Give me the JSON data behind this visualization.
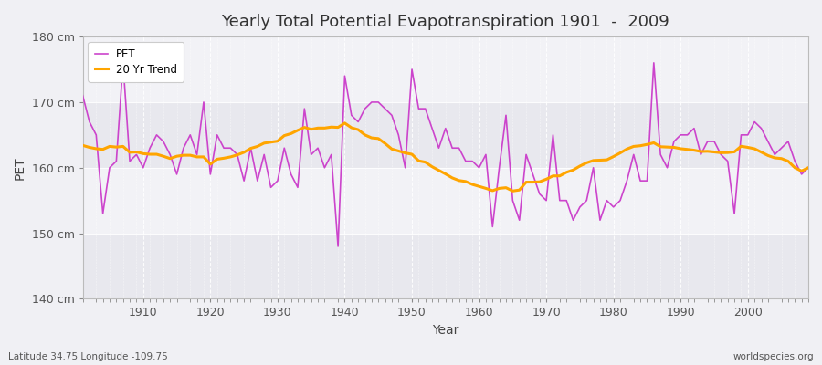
{
  "title": "Yearly Total Potential Evapotranspiration 1901  -  2009",
  "xlabel": "Year",
  "ylabel": "PET",
  "subtitle_left": "Latitude 34.75 Longitude -109.75",
  "subtitle_right": "worldspecies.org",
  "pet_color": "#cc44cc",
  "trend_color": "#ffa500",
  "bg_color": "#f0f0f4",
  "plot_bg": "#f0f0f4",
  "band_colors": [
    "#e8e8ee",
    "#f4f4f8"
  ],
  "years": [
    1901,
    1902,
    1903,
    1904,
    1905,
    1906,
    1907,
    1908,
    1909,
    1910,
    1911,
    1912,
    1913,
    1914,
    1915,
    1916,
    1917,
    1918,
    1919,
    1920,
    1921,
    1922,
    1923,
    1924,
    1925,
    1926,
    1927,
    1928,
    1929,
    1930,
    1931,
    1932,
    1933,
    1934,
    1935,
    1936,
    1937,
    1938,
    1939,
    1940,
    1941,
    1942,
    1943,
    1944,
    1945,
    1946,
    1947,
    1948,
    1949,
    1950,
    1951,
    1952,
    1953,
    1954,
    1955,
    1956,
    1957,
    1958,
    1959,
    1960,
    1961,
    1962,
    1963,
    1964,
    1965,
    1966,
    1967,
    1968,
    1969,
    1970,
    1971,
    1972,
    1973,
    1974,
    1975,
    1976,
    1977,
    1978,
    1979,
    1980,
    1981,
    1982,
    1983,
    1984,
    1985,
    1986,
    1987,
    1988,
    1989,
    1990,
    1991,
    1992,
    1993,
    1994,
    1995,
    1996,
    1997,
    1998,
    1999,
    2000,
    2001,
    2002,
    2003,
    2004,
    2005,
    2006,
    2007,
    2008,
    2009
  ],
  "pet": [
    171,
    167,
    165,
    153,
    160,
    161,
    176,
    161,
    162,
    160,
    163,
    165,
    164,
    162,
    159,
    163,
    165,
    162,
    170,
    159,
    165,
    163,
    163,
    162,
    158,
    163,
    158,
    162,
    157,
    158,
    163,
    159,
    157,
    169,
    162,
    163,
    160,
    162,
    148,
    174,
    168,
    167,
    169,
    170,
    170,
    169,
    168,
    165,
    160,
    175,
    169,
    169,
    166,
    163,
    166,
    163,
    163,
    161,
    161,
    160,
    162,
    151,
    160,
    168,
    155,
    152,
    162,
    159,
    156,
    155,
    165,
    155,
    155,
    152,
    154,
    155,
    160,
    152,
    155,
    154,
    155,
    158,
    162,
    158,
    158,
    176,
    162,
    160,
    164,
    165,
    165,
    166,
    162,
    164,
    164,
    162,
    161,
    153,
    165,
    165,
    167,
    166,
    164,
    162,
    163,
    164,
    161,
    159,
    160
  ],
  "ylim": [
    140,
    180
  ],
  "yticks": [
    140,
    150,
    160,
    170,
    180
  ],
  "xlim": [
    1901,
    2009
  ],
  "xticks": [
    1910,
    1920,
    1930,
    1940,
    1950,
    1960,
    1970,
    1980,
    1990,
    2000
  ],
  "trend_window": 20
}
